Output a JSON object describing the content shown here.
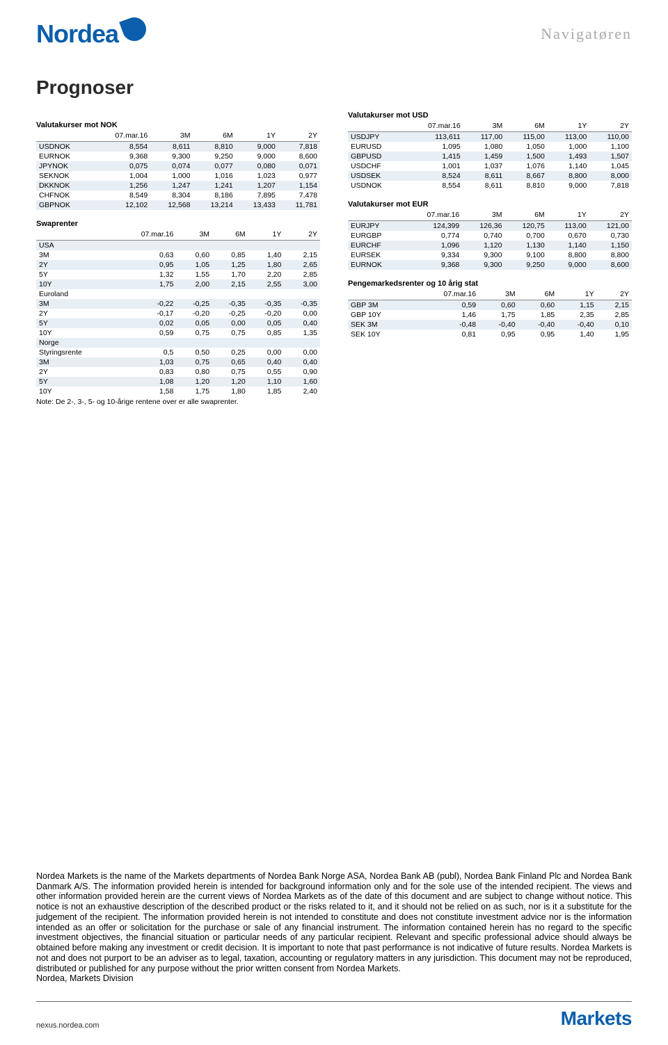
{
  "header": {
    "logo_text": "Nordea",
    "navigatoren": "Navigatøren"
  },
  "page_title": "Prognoser",
  "tables": {
    "nok": {
      "title": "Valutakurser mot NOK",
      "columns": [
        "",
        "07.mar.16",
        "3M",
        "6M",
        "1Y",
        "2Y"
      ],
      "rows": [
        [
          "USDNOK",
          "8,554",
          "8,611",
          "8,810",
          "9,000",
          "7,818"
        ],
        [
          "EURNOK",
          "9,368",
          "9,300",
          "9,250",
          "9,000",
          "8,600"
        ],
        [
          "JPYNOK",
          "0,075",
          "0,074",
          "0,077",
          "0,080",
          "0,071"
        ],
        [
          "SEKNOK",
          "1,004",
          "1,000",
          "1,016",
          "1,023",
          "0,977"
        ],
        [
          "DKKNOK",
          "1,256",
          "1,247",
          "1,241",
          "1,207",
          "1,154"
        ],
        [
          "CHFNOK",
          "8,549",
          "8,304",
          "8,186",
          "7,895",
          "7,478"
        ],
        [
          "GBPNOK",
          "12,102",
          "12,568",
          "13,214",
          "13,433",
          "11,781"
        ]
      ]
    },
    "swap": {
      "title": "Swaprenter",
      "columns": [
        "",
        "07.mar.16",
        "3M",
        "6M",
        "1Y",
        "2Y"
      ],
      "sections": [
        {
          "label": "USA",
          "rows": [
            [
              "3M",
              "0,63",
              "0,60",
              "0,85",
              "1,40",
              "2,15"
            ],
            [
              "2Y",
              "0,95",
              "1,05",
              "1,25",
              "1,80",
              "2,65"
            ],
            [
              "5Y",
              "1,32",
              "1,55",
              "1,70",
              "2,20",
              "2,85"
            ],
            [
              "10Y",
              "1,75",
              "2,00",
              "2,15",
              "2,55",
              "3,00"
            ]
          ]
        },
        {
          "label": "Euroland",
          "rows": [
            [
              "3M",
              "-0,22",
              "-0,25",
              "-0,35",
              "-0,35",
              "-0,35"
            ],
            [
              "2Y",
              "-0,17",
              "-0,20",
              "-0,25",
              "-0,20",
              "0,00"
            ],
            [
              "5Y",
              "0,02",
              "0,05",
              "0,00",
              "0,05",
              "0,40"
            ],
            [
              "10Y",
              "0,59",
              "0,75",
              "0,75",
              "0,85",
              "1,35"
            ]
          ]
        },
        {
          "label": "Norge",
          "rows": [
            [
              "Styringsrente",
              "0,5",
              "0,50",
              "0,25",
              "0,00",
              "0,00"
            ],
            [
              "3M",
              "1,03",
              "0,75",
              "0,65",
              "0,40",
              "0,40"
            ],
            [
              "2Y",
              "0,83",
              "0,80",
              "0,75",
              "0,55",
              "0,90"
            ],
            [
              "5Y",
              "1,08",
              "1,20",
              "1,20",
              "1,10",
              "1,60"
            ],
            [
              "10Y",
              "1,58",
              "1,75",
              "1,80",
              "1,85",
              "2,40"
            ]
          ]
        }
      ],
      "note": "Note: De 2-, 3-, 5- og 10-årige rentene over er alle swaprenter."
    },
    "usd": {
      "title": "Valutakurser mot USD",
      "columns": [
        "",
        "07.mar.16",
        "3M",
        "6M",
        "1Y",
        "2Y"
      ],
      "rows": [
        [
          "USDJPY",
          "113,611",
          "117,00",
          "115,00",
          "113,00",
          "110,00"
        ],
        [
          "EURUSD",
          "1,095",
          "1,080",
          "1,050",
          "1,000",
          "1,100"
        ],
        [
          "GBPUSD",
          "1,415",
          "1,459",
          "1,500",
          "1,493",
          "1,507"
        ],
        [
          "USDCHF",
          "1,001",
          "1,037",
          "1,076",
          "1,140",
          "1,045"
        ],
        [
          "USDSEK",
          "8,524",
          "8,611",
          "8,667",
          "8,800",
          "8,000"
        ],
        [
          "USDNOK",
          "8,554",
          "8,611",
          "8,810",
          "9,000",
          "7,818"
        ]
      ]
    },
    "eur": {
      "title": "Valutakurser mot EUR",
      "columns": [
        "",
        "07.mar.16",
        "3M",
        "6M",
        "1Y",
        "2Y"
      ],
      "rows": [
        [
          "EURJPY",
          "124,399",
          "126,36",
          "120,75",
          "113,00",
          "121,00"
        ],
        [
          "EURGBP",
          "0,774",
          "0,740",
          "0,700",
          "0,670",
          "0,730"
        ],
        [
          "EURCHF",
          "1,096",
          "1,120",
          "1,130",
          "1,140",
          "1,150"
        ],
        [
          "EURSEK",
          "9,334",
          "9,300",
          "9,100",
          "8,800",
          "8,800"
        ],
        [
          "EURNOK",
          "9,368",
          "9,300",
          "9,250",
          "9,000",
          "8,600"
        ]
      ]
    },
    "mm": {
      "title": "Pengemarkedsrenter og 10 årig stat",
      "columns": [
        "",
        "07.mar.16",
        "3M",
        "6M",
        "1Y",
        "2Y"
      ],
      "rows": [
        [
          "GBP 3M",
          "0,59",
          "0,60",
          "0,60",
          "1,15",
          "2,15"
        ],
        [
          "GBP 10Y",
          "1,46",
          "1,75",
          "1,85",
          "2,35",
          "2,85"
        ],
        [
          "SEK 3M",
          "-0,48",
          "-0,40",
          "-0,40",
          "-0,40",
          "0,10"
        ],
        [
          "SEK 10Y",
          "0,81",
          "0,95",
          "0,95",
          "1,40",
          "1,95"
        ]
      ]
    }
  },
  "disclaimer": {
    "p1": "Nordea Markets is the name of the Markets departments of Nordea Bank Norge ASA, Nordea Bank AB (publ), Nordea Bank Finland Plc and Nordea Bank Danmark A/S. The information provided herein is intended for background information only and for the sole use of the intended recipient. The views and other information provided herein are the current views of Nordea Markets as of the date of this document and are subject to change without notice. This notice is not an exhaustive description of the described product or the risks related to it, and it should not be relied on as such, nor is it a substitute for the judgement of the recipient. The information provided herein is not intended to constitute and does not constitute investment advice nor is the information intended as an offer or solicitation for the purchase or sale of any financial instrument. The information contained herein has no regard to the specific investment objectives, the financial situation or particular needs of any particular recipient. Relevant and specific professional advice should always be obtained before making any investment or credit decision. It is important to note that past performance is not indicative of future results. Nordea Markets is not and does not purport to be an adviser as to legal, taxation, accounting or regulatory matters in any jurisdiction. This document may not be reproduced, distributed or published for any purpose without the prior written consent from Nordea Markets.",
    "p2": "Nordea, Markets Division"
  },
  "footer": {
    "url": "nexus.nordea.com",
    "markets": "Markets"
  },
  "style": {
    "brand_blue": "#0a5eab",
    "grey_text": "#a9a9a9",
    "row_alt_bg": "#e7eef4"
  }
}
